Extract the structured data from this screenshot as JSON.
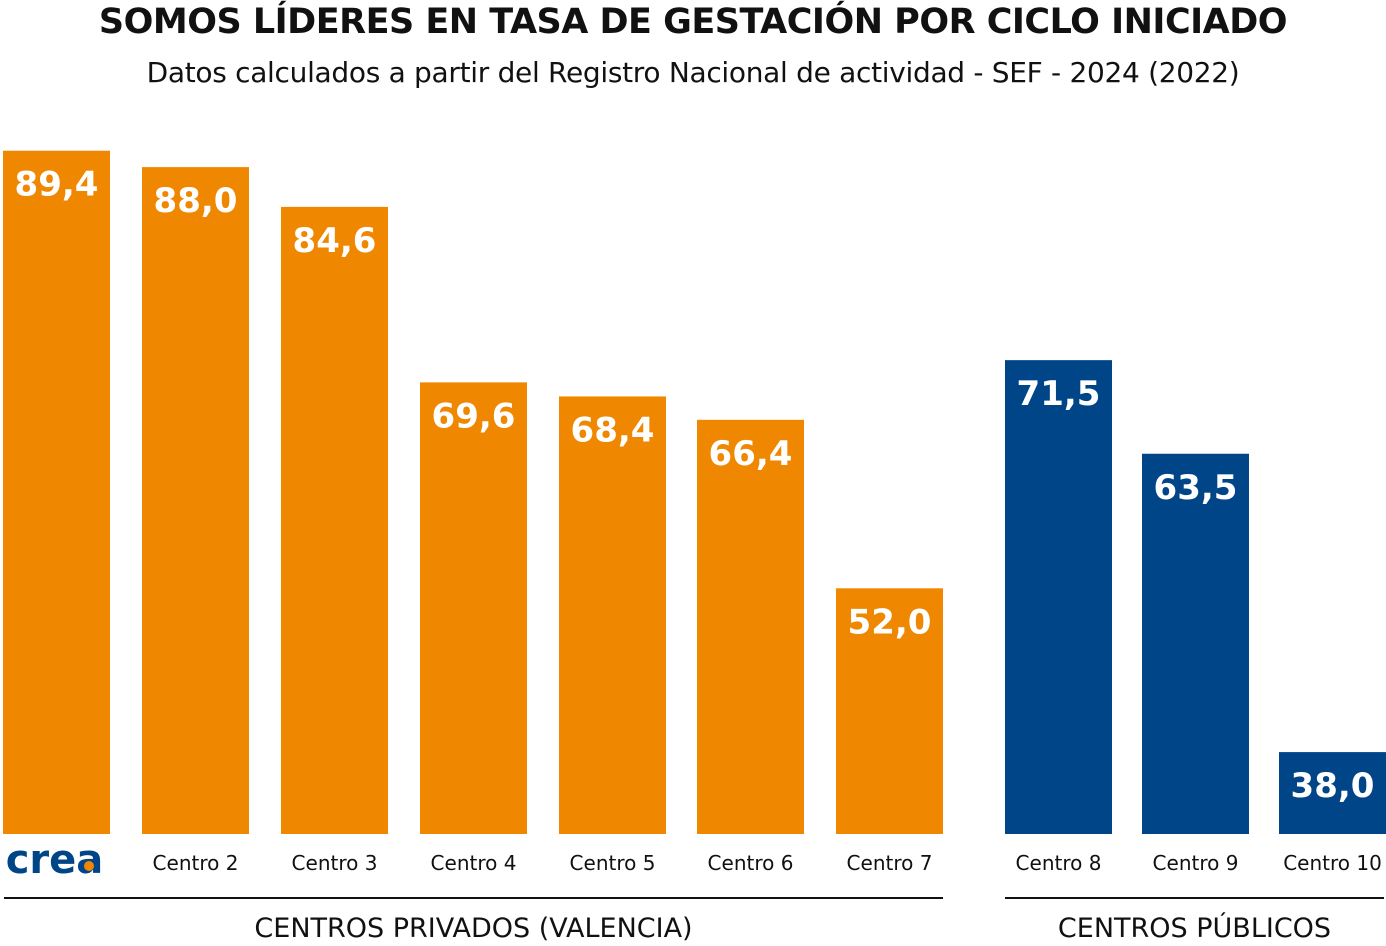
{
  "chart_data": {
    "type": "bar",
    "title": "SOMOS LÍDERES EN TASA DE GESTACIÓN POR CICLO INICIADO",
    "subtitle": "Datos calculados a partir del Registro Nacional de actividad - SEF - 2024 (2022)",
    "xlabel": "",
    "ylabel": "",
    "groups": [
      {
        "name": "CENTROS PRIVADOS (VALENCIA)",
        "color": "#F08700",
        "categories": [
          "crea",
          "Centro 2",
          "Centro 3",
          "Centro 4",
          "Centro 5",
          "Centro 6",
          "Centro 7"
        ],
        "values": [
          89.4,
          88.0,
          84.6,
          69.6,
          68.4,
          66.4,
          52.0
        ],
        "labels": [
          "89,4",
          "88,0",
          "84,6",
          "69,6",
          "68,4",
          "66,4",
          "52,0"
        ]
      },
      {
        "name": "CENTROS PÚBLICOS",
        "color": "#004587",
        "categories": [
          "Centro 8",
          "Centro 9",
          "Centro 10"
        ],
        "values": [
          71.5,
          63.5,
          38.0
        ],
        "labels": [
          "71,5",
          "63,5",
          "38,0"
        ]
      }
    ],
    "logo_text": "crea",
    "logo_accent": "#F08700",
    "grid": false,
    "legend": "none"
  }
}
